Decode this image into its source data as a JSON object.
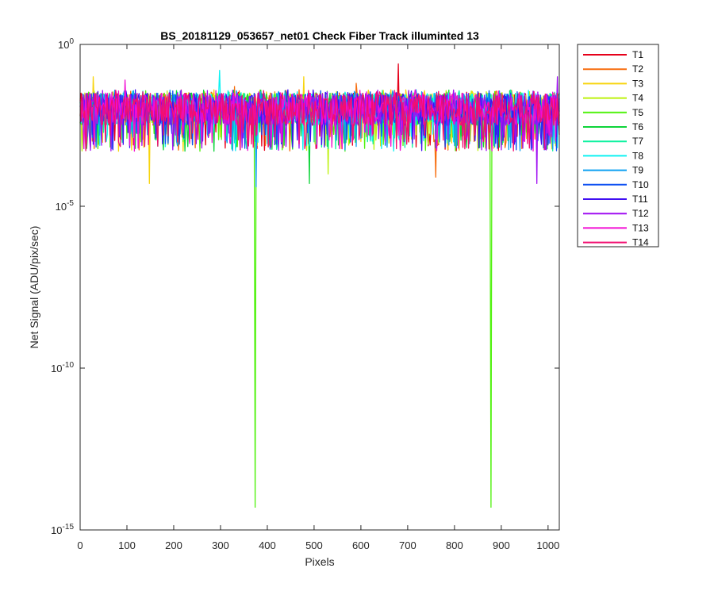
{
  "chart_data": {
    "type": "line",
    "title": "BS_20181129_053657_net01   Check Fiber     Track illuminted 13",
    "xlabel": "Pixels",
    "ylabel": "Net Signal (ADU/pix/sec)",
    "x_scale": "linear",
    "y_scale": "log",
    "xlim": [
      0,
      1024
    ],
    "ylim_exp": [
      -15,
      0
    ],
    "x_ticks": [
      0,
      100,
      200,
      300,
      400,
      500,
      600,
      700,
      800,
      900,
      1000
    ],
    "x_tick_labels": [
      "0",
      "100",
      "200",
      "300",
      "400",
      "500",
      "600",
      "700",
      "800",
      "900",
      "1000"
    ],
    "y_tick_exponents": [
      -15,
      -10,
      -5,
      0
    ],
    "y_tick_labels": [
      {
        "base": "10",
        "exp": "-15"
      },
      {
        "base": "10",
        "exp": "-10"
      },
      {
        "base": "10",
        "exp": "-5"
      },
      {
        "base": "10",
        "exp": "0"
      }
    ],
    "grid": false,
    "legend_position": "outside-top-right",
    "signal_band_log10": [
      -3.3,
      -1.4
    ],
    "series": [
      {
        "name": "T1",
        "color": "#e6001a",
        "spikes": [
          {
            "x": 680,
            "log10": -0.6
          }
        ]
      },
      {
        "name": "T2",
        "color": "#f76d0e",
        "spikes": [
          {
            "x": 330,
            "log10": -1.3
          },
          {
            "x": 590,
            "log10": -1.2
          },
          {
            "x": 760,
            "log10": -4.1
          }
        ]
      },
      {
        "name": "T3",
        "color": "#f7d40e",
        "spikes": [
          {
            "x": 28,
            "log10": -1.0
          },
          {
            "x": 478,
            "log10": -1.0
          },
          {
            "x": 148,
            "log10": -4.3
          }
        ]
      },
      {
        "name": "T4",
        "color": "#bdf20e",
        "spikes": [
          {
            "x": 530,
            "log10": -4.0
          }
        ]
      },
      {
        "name": "T5",
        "color": "#50f20e",
        "spikes": [
          {
            "x": 373,
            "log10": -14.3
          },
          {
            "x": 878,
            "log10": -14.3
          }
        ]
      },
      {
        "name": "T6",
        "color": "#0ed43a",
        "spikes": [
          {
            "x": 490,
            "log10": -4.3
          }
        ]
      },
      {
        "name": "T7",
        "color": "#0ef2a0",
        "spikes": []
      },
      {
        "name": "T8",
        "color": "#0ef2f2",
        "spikes": [
          {
            "x": 297,
            "log10": -0.8
          }
        ]
      },
      {
        "name": "T9",
        "color": "#0ea0f2",
        "spikes": [
          {
            "x": 375,
            "log10": -4.4
          }
        ]
      },
      {
        "name": "T10",
        "color": "#0e50f2",
        "spikes": []
      },
      {
        "name": "T11",
        "color": "#400ef2",
        "spikes": []
      },
      {
        "name": "T12",
        "color": "#a00ef2",
        "spikes": [
          {
            "x": 1020,
            "log10": -1.0
          },
          {
            "x": 975,
            "log10": -4.3
          }
        ]
      },
      {
        "name": "T13",
        "color": "#f20ed4",
        "spikes": [
          {
            "x": 95,
            "log10": -1.1
          }
        ]
      },
      {
        "name": "T14",
        "color": "#f20e70",
        "spikes": []
      }
    ]
  }
}
